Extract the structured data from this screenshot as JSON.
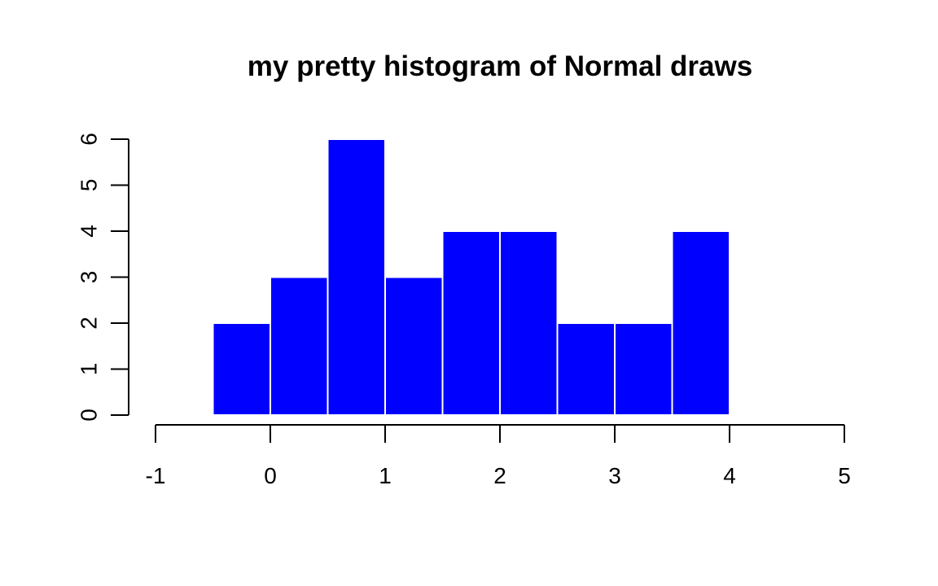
{
  "chart_data": {
    "type": "bar",
    "title": "my pretty histogram of Normal draws",
    "xlabel": "",
    "ylabel": "",
    "bins": [
      {
        "start": -0.5,
        "end": 0.0,
        "count": 2
      },
      {
        "start": 0.0,
        "end": 0.5,
        "count": 3
      },
      {
        "start": 0.5,
        "end": 1.0,
        "count": 6
      },
      {
        "start": 1.0,
        "end": 1.5,
        "count": 3
      },
      {
        "start": 1.5,
        "end": 2.0,
        "count": 4
      },
      {
        "start": 2.0,
        "end": 2.5,
        "count": 4
      },
      {
        "start": 2.5,
        "end": 3.0,
        "count": 2
      },
      {
        "start": 3.0,
        "end": 3.5,
        "count": 2
      },
      {
        "start": 3.5,
        "end": 4.0,
        "count": 4
      }
    ],
    "xlim": [
      -1,
      5
    ],
    "ylim": [
      0,
      6
    ],
    "x_ticks": [
      "-1",
      "0",
      "1",
      "2",
      "3",
      "4",
      "5"
    ],
    "y_ticks": [
      "0",
      "1",
      "2",
      "3",
      "4",
      "5",
      "6"
    ],
    "bar_color": "#0000ff",
    "bar_border_color": "#ffffff",
    "grid": false,
    "legend": "none"
  }
}
